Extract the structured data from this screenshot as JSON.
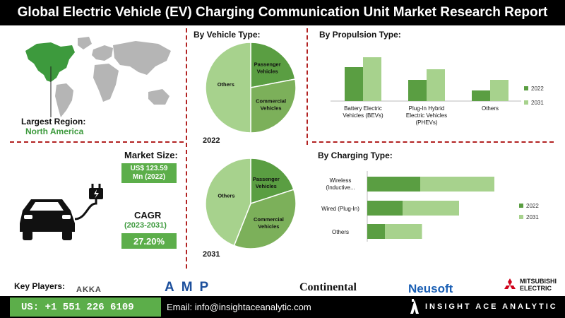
{
  "title": "Global Electric Vehicle (EV) Charging Communication Unit Market Research Report",
  "region": {
    "label": "Largest Region:",
    "value": "North America"
  },
  "market_size": {
    "label": "Market Size:",
    "value_line1": "US$ 123.59",
    "value_line2": "Mn (2022)"
  },
  "cagr": {
    "label": "CAGR",
    "period": "(2023-2031)",
    "value": "27.20%"
  },
  "vehicle_type": {
    "label": "By  Vehicle Type:",
    "year1": "2022",
    "year2": "2031"
  },
  "propulsion_type": {
    "label": "By Propulsion Type:"
  },
  "charging_type": {
    "label": "By Charging Type:"
  },
  "colors": {
    "dark_green": "#5a9e42",
    "light_green": "#a7d28d",
    "mid_green": "#7cb05a",
    "accent_green": "#5cae4a",
    "red_dash": "#b22222"
  },
  "chart_data": [
    {
      "type": "pie",
      "year": "2022",
      "categories": [
        "Passenger Vehicles",
        "Commercial Vehicles",
        "Others"
      ],
      "values": [
        22,
        28,
        50
      ]
    },
    {
      "type": "pie",
      "year": "2031",
      "categories": [
        "Passenger Vehicles",
        "Commercial Vehicles",
        "Others"
      ],
      "values": [
        20,
        36,
        44
      ]
    },
    {
      "type": "bar",
      "categories": [
        "Battery Electric Vehicles (BEVs)",
        "Plug-In Hybrid Electric Vehicles (PHEVs)",
        "Others"
      ],
      "series": [
        {
          "name": "2022",
          "values": [
            48,
            30,
            15
          ]
        },
        {
          "name": "2031",
          "values": [
            62,
            45,
            30
          ]
        }
      ],
      "ylim": [
        0,
        70
      ],
      "legend": "right"
    },
    {
      "type": "bar",
      "orientation": "horizontal",
      "stacked": true,
      "categories": [
        "Wireless (Inductive...",
        "Wired (Plug-In)",
        "Others"
      ],
      "series": [
        {
          "name": "2022",
          "values": [
            30,
            20,
            10
          ]
        },
        {
          "name": "2031",
          "values": [
            42,
            32,
            21
          ]
        }
      ],
      "xlim": [
        0,
        80
      ],
      "legend": "right"
    }
  ],
  "key_players": {
    "label": "Key Players:",
    "logos": [
      "AKKA",
      "AMP",
      "Continental",
      "Neusoft",
      "MITSUBISHI ELECTRIC"
    ]
  },
  "footer": {
    "phone": "US: +1 551 226 6109",
    "email": "Email: info@insightaceanalytic.com",
    "brand": "INSIGHT ACE ANALYTIC"
  }
}
